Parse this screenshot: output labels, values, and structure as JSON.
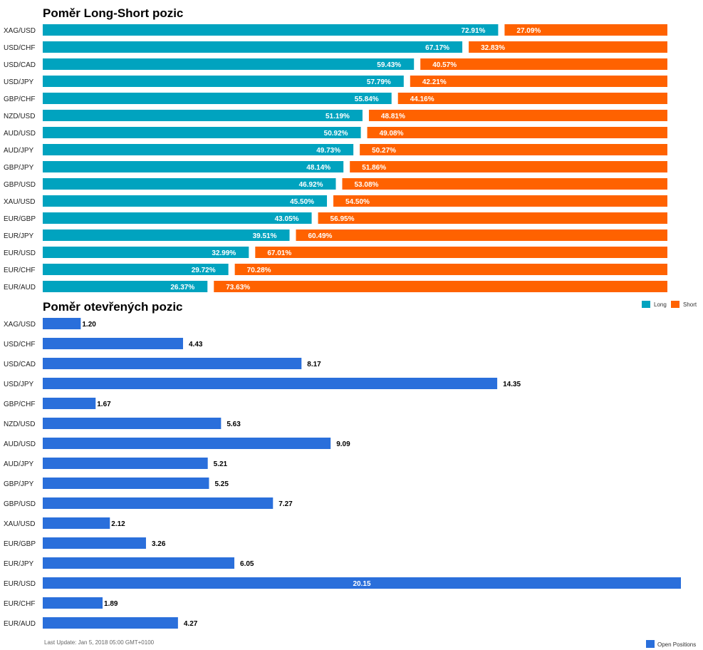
{
  "chart_data": [
    {
      "type": "bar",
      "orientation": "horizontal",
      "stacked": true,
      "title": "Poměr Long-Short pozic",
      "categories": [
        "XAG/USD",
        "USD/CHF",
        "USD/CAD",
        "USD/JPY",
        "GBP/CHF",
        "NZD/USD",
        "AUD/USD",
        "AUD/JPY",
        "GBP/JPY",
        "GBP/USD",
        "XAU/USD",
        "EUR/GBP",
        "EUR/JPY",
        "EUR/USD",
        "EUR/CHF",
        "EUR/AUD"
      ],
      "series": [
        {
          "name": "Long",
          "color": "#00a3bf",
          "values": [
            72.91,
            67.17,
            59.43,
            57.79,
            55.84,
            51.19,
            50.92,
            49.73,
            48.14,
            46.92,
            45.5,
            43.05,
            39.51,
            32.99,
            29.72,
            26.37
          ]
        },
        {
          "name": "Short",
          "color": "#ff6200",
          "values": [
            27.09,
            32.83,
            40.57,
            42.21,
            44.16,
            48.81,
            49.08,
            50.27,
            51.86,
            53.08,
            54.5,
            56.95,
            60.49,
            67.01,
            70.28,
            73.63
          ]
        }
      ],
      "labels": {
        "long": [
          "72.91%",
          "67.17%",
          "59.43%",
          "57.79%",
          "55.84%",
          "51.19%",
          "50.92%",
          "49.73%",
          "48.14%",
          "46.92%",
          "45.50%",
          "43.05%",
          "39.51%",
          "32.99%",
          "29.72%",
          "26.37%"
        ],
        "short": [
          "27.09%",
          "32.83%",
          "40.57%",
          "42.21%",
          "44.16%",
          "48.81%",
          "49.08%",
          "50.27%",
          "51.86%",
          "53.08%",
          "54.50%",
          "56.95%",
          "60.49%",
          "67.01%",
          "70.28%",
          "73.63%"
        ]
      },
      "xlim": [
        0,
        100
      ],
      "legend": {
        "position": "bottom-right",
        "long_label": "Long",
        "short_label": "Short"
      },
      "grid": false
    },
    {
      "type": "bar",
      "orientation": "horizontal",
      "title": "Poměr otevřených pozic",
      "categories": [
        "XAG/USD",
        "USD/CHF",
        "USD/CAD",
        "USD/JPY",
        "GBP/CHF",
        "NZD/USD",
        "AUD/USD",
        "AUD/JPY",
        "GBP/JPY",
        "GBP/USD",
        "XAU/USD",
        "EUR/GBP",
        "EUR/JPY",
        "EUR/USD",
        "EUR/CHF",
        "EUR/AUD"
      ],
      "values": [
        1.2,
        4.43,
        8.17,
        14.35,
        1.67,
        5.63,
        9.09,
        5.21,
        5.25,
        7.27,
        2.12,
        3.26,
        6.05,
        20.15,
        1.89,
        4.27
      ],
      "labels": [
        "1.20",
        "4.43",
        "8.17",
        "14.35",
        "1.67",
        "5.63",
        "9.09",
        "5.21",
        "5.25",
        "7.27",
        "2.12",
        "3.26",
        "6.05",
        "20.15",
        "1.89",
        "4.27"
      ],
      "series_name": "Open Positions",
      "color": "#2a6fdb",
      "xlim": [
        0,
        20.15
      ],
      "legend": {
        "position": "bottom-right"
      },
      "grid": false
    }
  ],
  "footer": {
    "last_update": "Last Update: Jan 5, 2018 05:00 GMT+0100"
  }
}
